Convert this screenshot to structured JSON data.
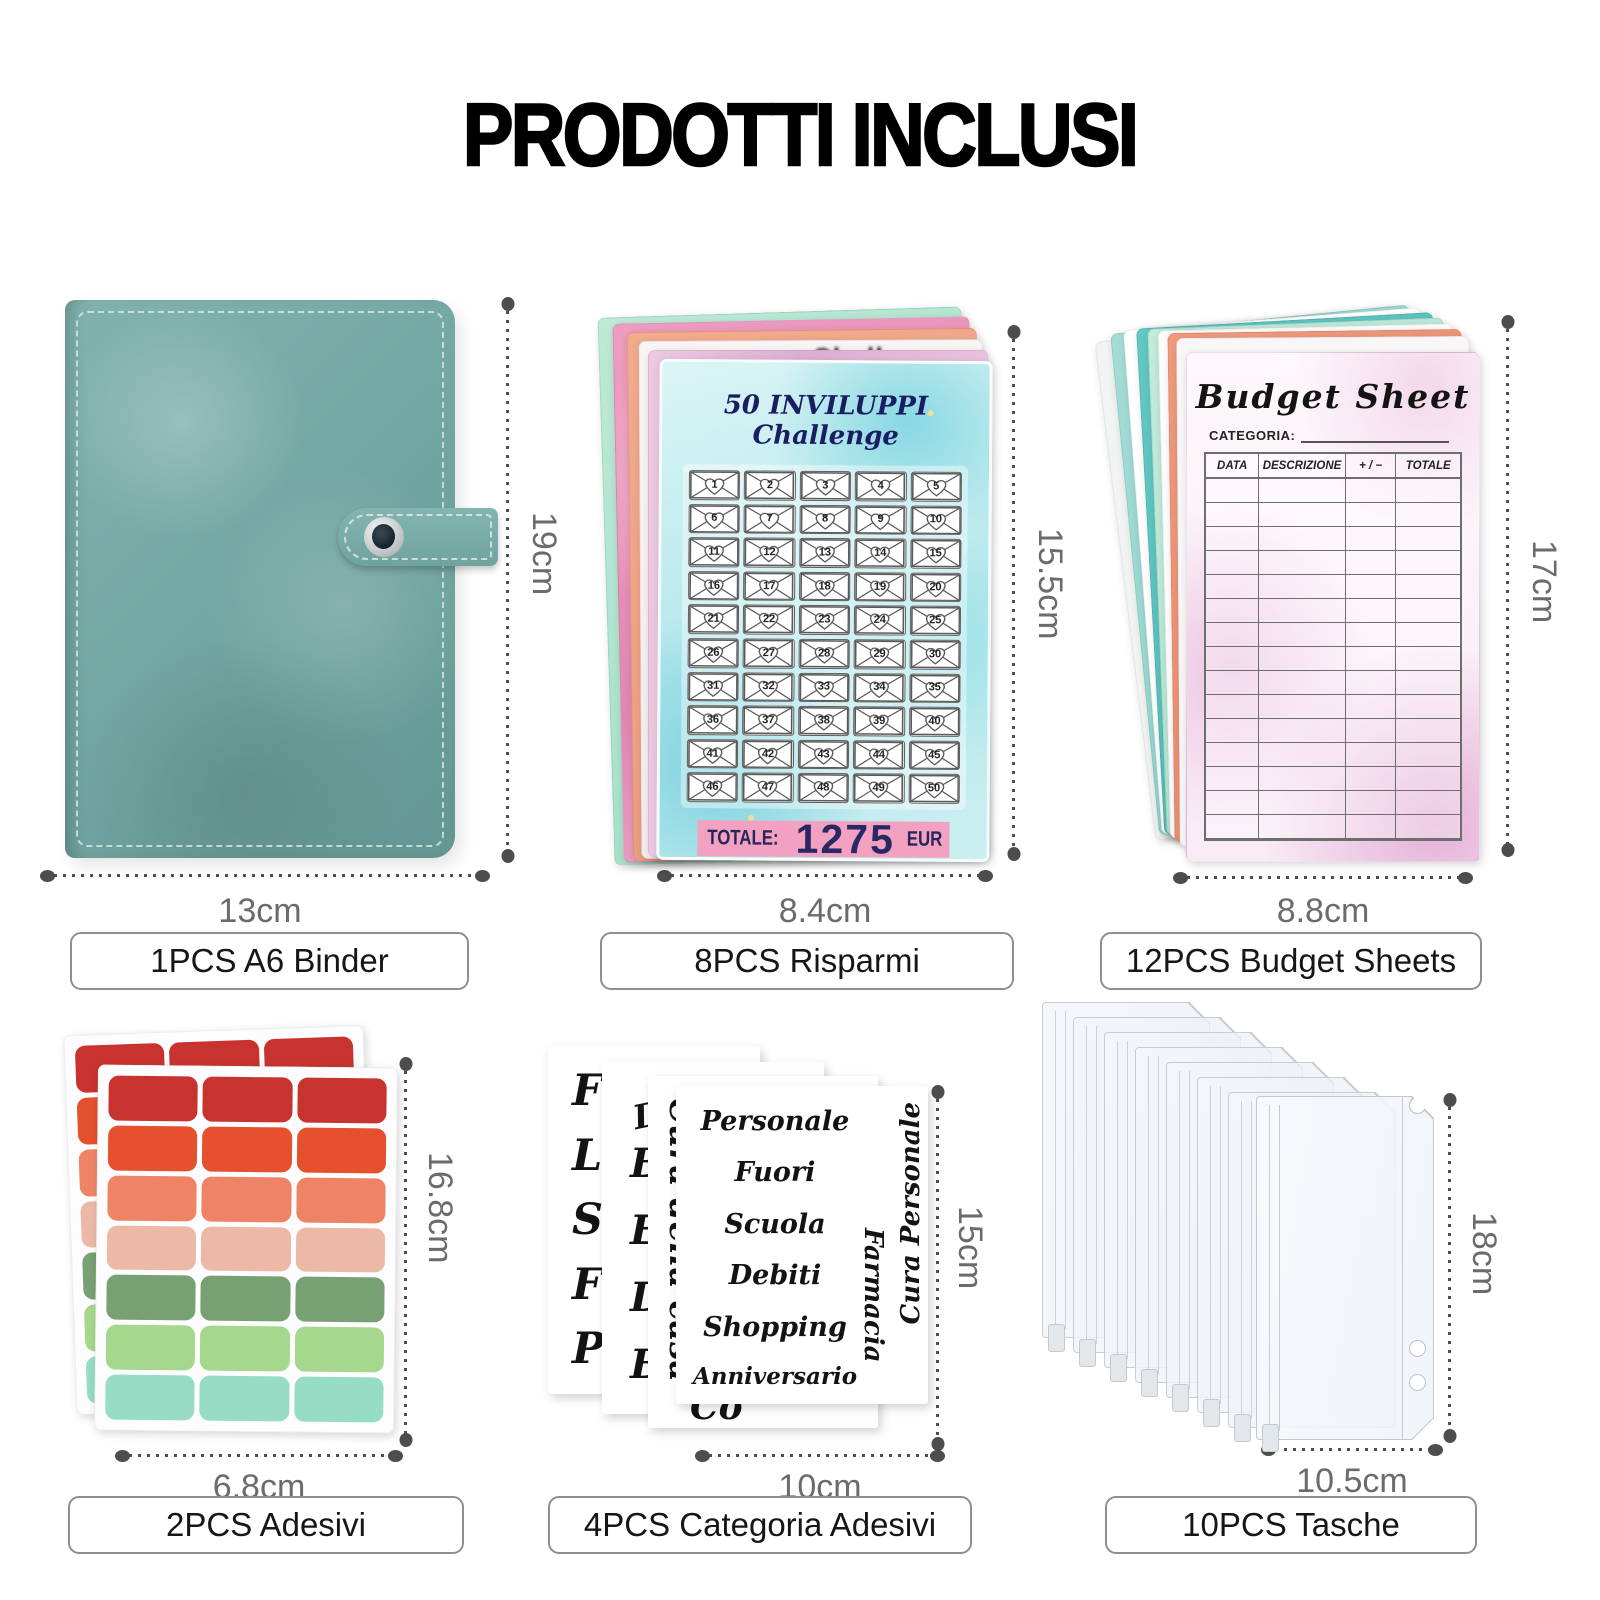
{
  "page": {
    "title": "PRODOTTI INCLUSI"
  },
  "binder": {
    "label": "1PCS A6 Binder",
    "width_dim": "13cm",
    "height_dim": "19cm",
    "color": "#74a8a4"
  },
  "risparmi": {
    "label": "8PCS Risparmi",
    "width_dim": "8.4cm",
    "height_dim": "15.5cm",
    "sheet_title": "50 INVILUPPI Challenge",
    "back_sheet_partial_title": "Challenge",
    "envelope_numbers": [
      1,
      2,
      3,
      4,
      5,
      6,
      7,
      8,
      9,
      10,
      11,
      12,
      13,
      14,
      15,
      16,
      17,
      18,
      19,
      20,
      21,
      22,
      23,
      24,
      25,
      26,
      27,
      28,
      29,
      30,
      31,
      32,
      33,
      34,
      35,
      36,
      37,
      38,
      39,
      40,
      41,
      42,
      43,
      44,
      45,
      46,
      47,
      48,
      49,
      50
    ],
    "totale_label": "TOTALE:",
    "totale_value": "1275",
    "totale_currency": "EUR",
    "band_color": "#f2a2c0"
  },
  "budget": {
    "label": "12PCS Budget Sheets",
    "width_dim": "8.8cm",
    "height_dim": "17cm",
    "sheet_title": "Budget Sheet",
    "categoria_label": "CATEGORIA:",
    "columns": [
      "DATA",
      "DESCRIZIONE",
      "+ / −",
      "TOTALE"
    ],
    "empty_rows": 15
  },
  "adesivi": {
    "label": "2PCS Adesivi",
    "width_dim": "6.8cm",
    "height_dim": "16.8cm",
    "row_colors": [
      "#c9332f",
      "#e5512c",
      "#ee8465",
      "#ecb9a7",
      "#78a173",
      "#a5d88c",
      "#97dcc4"
    ],
    "columns": 3
  },
  "categoria": {
    "label": "4PCS Categoria Adesivi",
    "width_dim": "10cm",
    "height_dim": "15cm",
    "front_words": [
      "Personale",
      "Fuori",
      "Scuola",
      "Debiti",
      "Shopping",
      "Anniversario"
    ],
    "vertical_word_inner": "Farmacia",
    "vertical_word_outer": "Cura Personale",
    "sheet3_vertical_word": "Cura della casa",
    "sheet3_bottom_partial": "Co",
    "sheet2_word": "Deposit",
    "sheet2_letters": [
      "B",
      "E",
      "D",
      "B"
    ],
    "sheet1_letters": [
      "F",
      "L",
      "S",
      "F",
      "P"
    ]
  },
  "tasche": {
    "label": "10PCS Tasche",
    "width_dim": "10.5cm",
    "height_dim": "18cm",
    "back_stack_count": 7
  }
}
